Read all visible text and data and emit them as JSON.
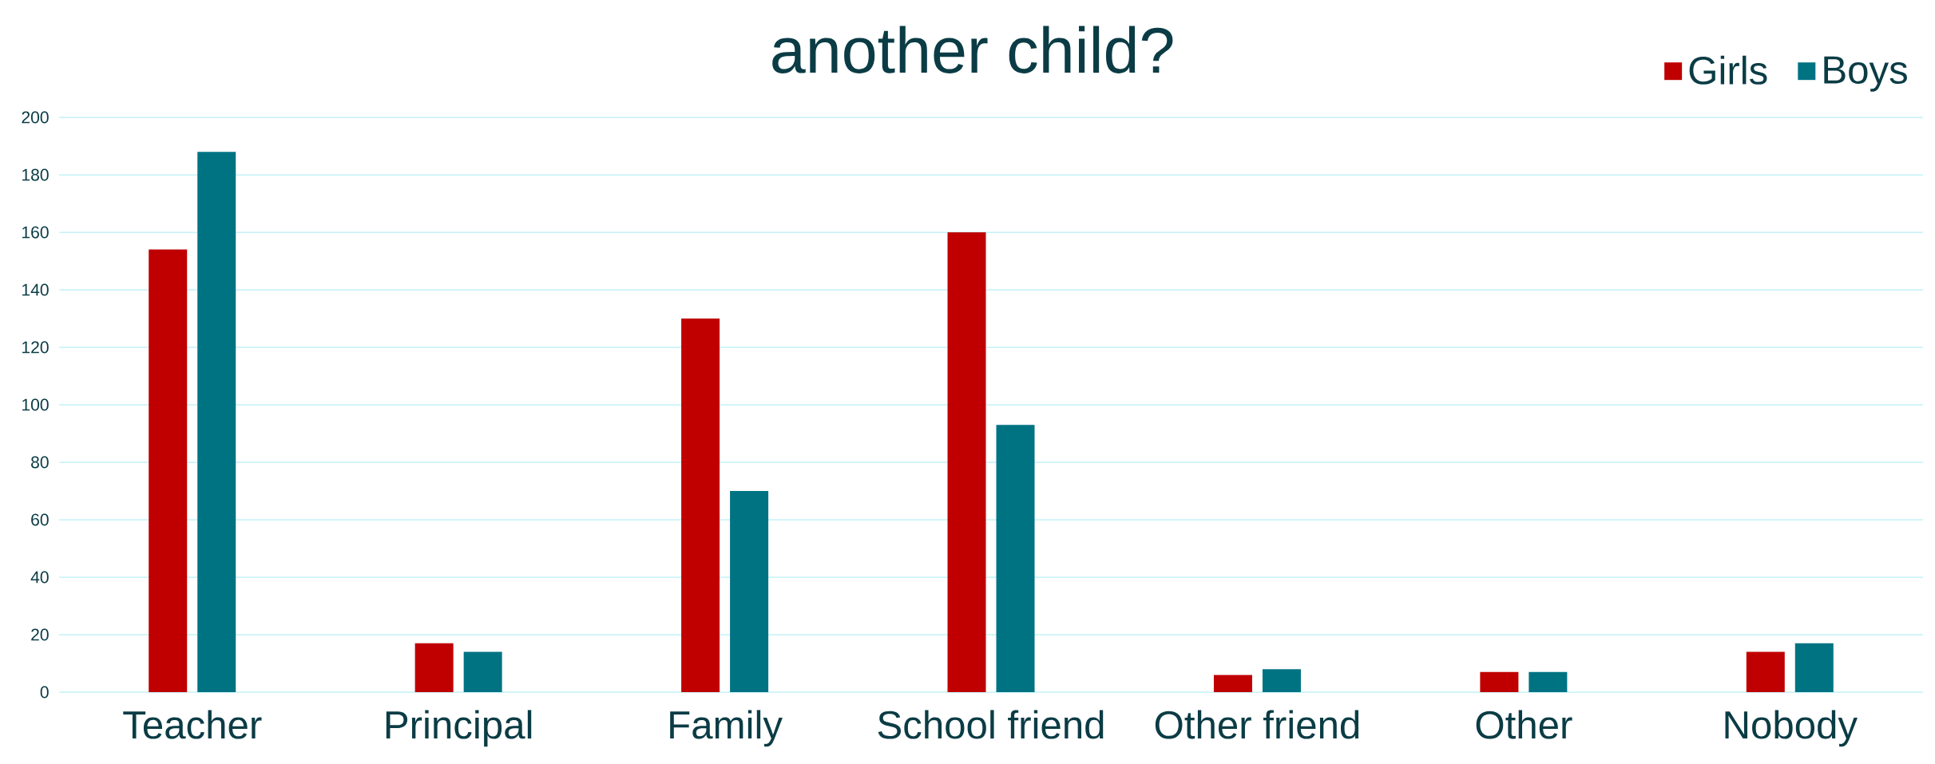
{
  "chart_data": {
    "type": "bar",
    "title": "another child?",
    "categories": [
      "Teacher",
      "Principal",
      "Family",
      "School friend",
      "Other friend",
      "Other",
      "Nobody"
    ],
    "series": [
      {
        "name": "Girls",
        "color": "#c00000",
        "values": [
          154,
          17,
          130,
          160,
          6,
          7,
          14
        ]
      },
      {
        "name": "Boys",
        "color": "#007383",
        "values": [
          188,
          14,
          70,
          93,
          8,
          7,
          17
        ]
      }
    ],
    "ylim": [
      0,
      200
    ],
    "yticks": [
      0,
      20,
      40,
      60,
      80,
      100,
      120,
      140,
      160,
      180,
      200
    ],
    "grid": "y",
    "legend": "top right"
  }
}
